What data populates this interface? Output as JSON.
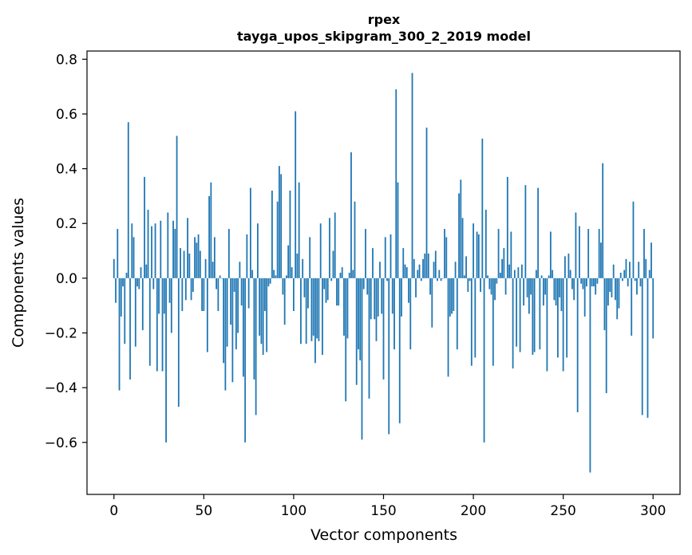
{
  "chart_data": {
    "type": "bar",
    "title": "rpex",
    "subtitle": "tayga_upos_skipgram_300_2_2019 model",
    "xlabel": "Vector components",
    "ylabel": "Components values",
    "xlim": [
      -15,
      315
    ],
    "ylim": [
      -0.79,
      0.83
    ],
    "xticks": [
      0,
      50,
      100,
      150,
      200,
      250,
      300
    ],
    "yticks": [
      -0.6,
      -0.4,
      -0.2,
      0.0,
      0.2,
      0.4,
      0.6,
      0.8
    ],
    "ytick_labels": [
      "−0.6",
      "−0.4",
      "−0.2",
      "0.0",
      "0.2",
      "0.4",
      "0.6",
      "0.8"
    ],
    "bar_color": "#1f77b4",
    "values": [
      0.07,
      -0.09,
      0.18,
      -0.41,
      -0.14,
      -0.03,
      -0.24,
      0.02,
      0.57,
      -0.37,
      0.2,
      0.15,
      -0.25,
      -0.03,
      -0.04,
      0.04,
      -0.19,
      0.37,
      0.05,
      0.25,
      -0.32,
      0.19,
      -0.04,
      0.2,
      -0.34,
      -0.13,
      0.21,
      -0.34,
      -0.13,
      -0.6,
      0.24,
      -0.09,
      -0.2,
      0.21,
      0.18,
      0.52,
      -0.47,
      0.11,
      -0.12,
      0.1,
      -0.08,
      0.22,
      0.09,
      -0.08,
      -0.05,
      0.15,
      0.13,
      0.16,
      0.1,
      -0.12,
      -0.12,
      0.07,
      -0.27,
      0.3,
      0.35,
      0.06,
      0.15,
      -0.04,
      -0.12,
      0.01,
      0.0,
      -0.31,
      -0.41,
      -0.25,
      0.18,
      -0.17,
      -0.38,
      -0.05,
      -0.26,
      -0.2,
      0.06,
      -0.1,
      -0.36,
      -0.6,
      0.16,
      -0.11,
      0.33,
      0.03,
      -0.37,
      -0.5,
      0.2,
      -0.21,
      -0.24,
      -0.28,
      -0.12,
      -0.27,
      -0.03,
      -0.02,
      0.32,
      0.03,
      0.01,
      0.28,
      0.41,
      0.38,
      -0.06,
      -0.17,
      0.01,
      0.12,
      0.32,
      0.04,
      -0.12,
      0.61,
      0.09,
      0.35,
      -0.24,
      0.07,
      -0.07,
      -0.24,
      -0.11,
      0.15,
      -0.23,
      -0.21,
      -0.31,
      -0.22,
      -0.23,
      0.2,
      -0.28,
      -0.04,
      -0.09,
      -0.08,
      0.22,
      -0.01,
      0.1,
      0.24,
      -0.1,
      -0.1,
      0.02,
      0.04,
      -0.21,
      -0.45,
      -0.22,
      0.02,
      0.46,
      0.03,
      0.28,
      -0.39,
      -0.26,
      -0.3,
      -0.59,
      -0.04,
      0.18,
      -0.06,
      -0.44,
      -0.15,
      0.11,
      -0.15,
      -0.23,
      -0.14,
      0.06,
      -0.13,
      -0.37,
      0.15,
      -0.01,
      -0.57,
      0.16,
      -0.13,
      -0.26,
      0.69,
      0.35,
      -0.53,
      -0.14,
      0.11,
      0.05,
      0.04,
      -0.09,
      -0.26,
      0.75,
      0.07,
      -0.07,
      0.03,
      0.05,
      -0.01,
      0.07,
      0.09,
      0.55,
      0.09,
      -0.06,
      -0.18,
      0.06,
      0.1,
      -0.01,
      0.03,
      -0.01,
      0.0,
      0.18,
      0.15,
      -0.36,
      -0.14,
      -0.13,
      -0.12,
      0.06,
      -0.26,
      0.31,
      0.36,
      0.22,
      0.01,
      0.08,
      -0.05,
      -0.01,
      -0.32,
      0.2,
      -0.29,
      0.17,
      0.16,
      -0.05,
      0.51,
      -0.6,
      0.25,
      0.01,
      -0.04,
      -0.06,
      -0.32,
      -0.08,
      -0.02,
      0.18,
      0.02,
      0.07,
      0.11,
      -0.06,
      0.37,
      0.05,
      0.17,
      -0.33,
      0.03,
      -0.25,
      0.04,
      -0.27,
      0.05,
      -0.1,
      0.34,
      -0.07,
      -0.13,
      -0.06,
      -0.28,
      -0.27,
      0.03,
      0.33,
      -0.26,
      0.01,
      -0.1,
      -0.06,
      -0.34,
      0.01,
      0.17,
      0.03,
      -0.08,
      -0.1,
      -0.29,
      -0.07,
      -0.12,
      -0.34,
      0.08,
      -0.29,
      0.09,
      0.03,
      -0.04,
      -0.08,
      0.24,
      -0.49,
      0.19,
      -0.02,
      -0.04,
      -0.14,
      -0.03,
      0.18,
      -0.71,
      -0.03,
      -0.03,
      -0.06,
      -0.02,
      0.18,
      0.13,
      0.42,
      -0.19,
      -0.42,
      -0.1,
      -0.05,
      -0.07,
      0.05,
      -0.08,
      -0.15,
      -0.11,
      0.02,
      -0.01,
      0.03,
      0.07,
      -0.03,
      0.06,
      -0.21,
      0.28,
      -0.01,
      -0.06,
      0.06,
      -0.03,
      -0.5,
      0.18,
      0.07,
      -0.51,
      0.03,
      0.13,
      -0.22
    ]
  }
}
